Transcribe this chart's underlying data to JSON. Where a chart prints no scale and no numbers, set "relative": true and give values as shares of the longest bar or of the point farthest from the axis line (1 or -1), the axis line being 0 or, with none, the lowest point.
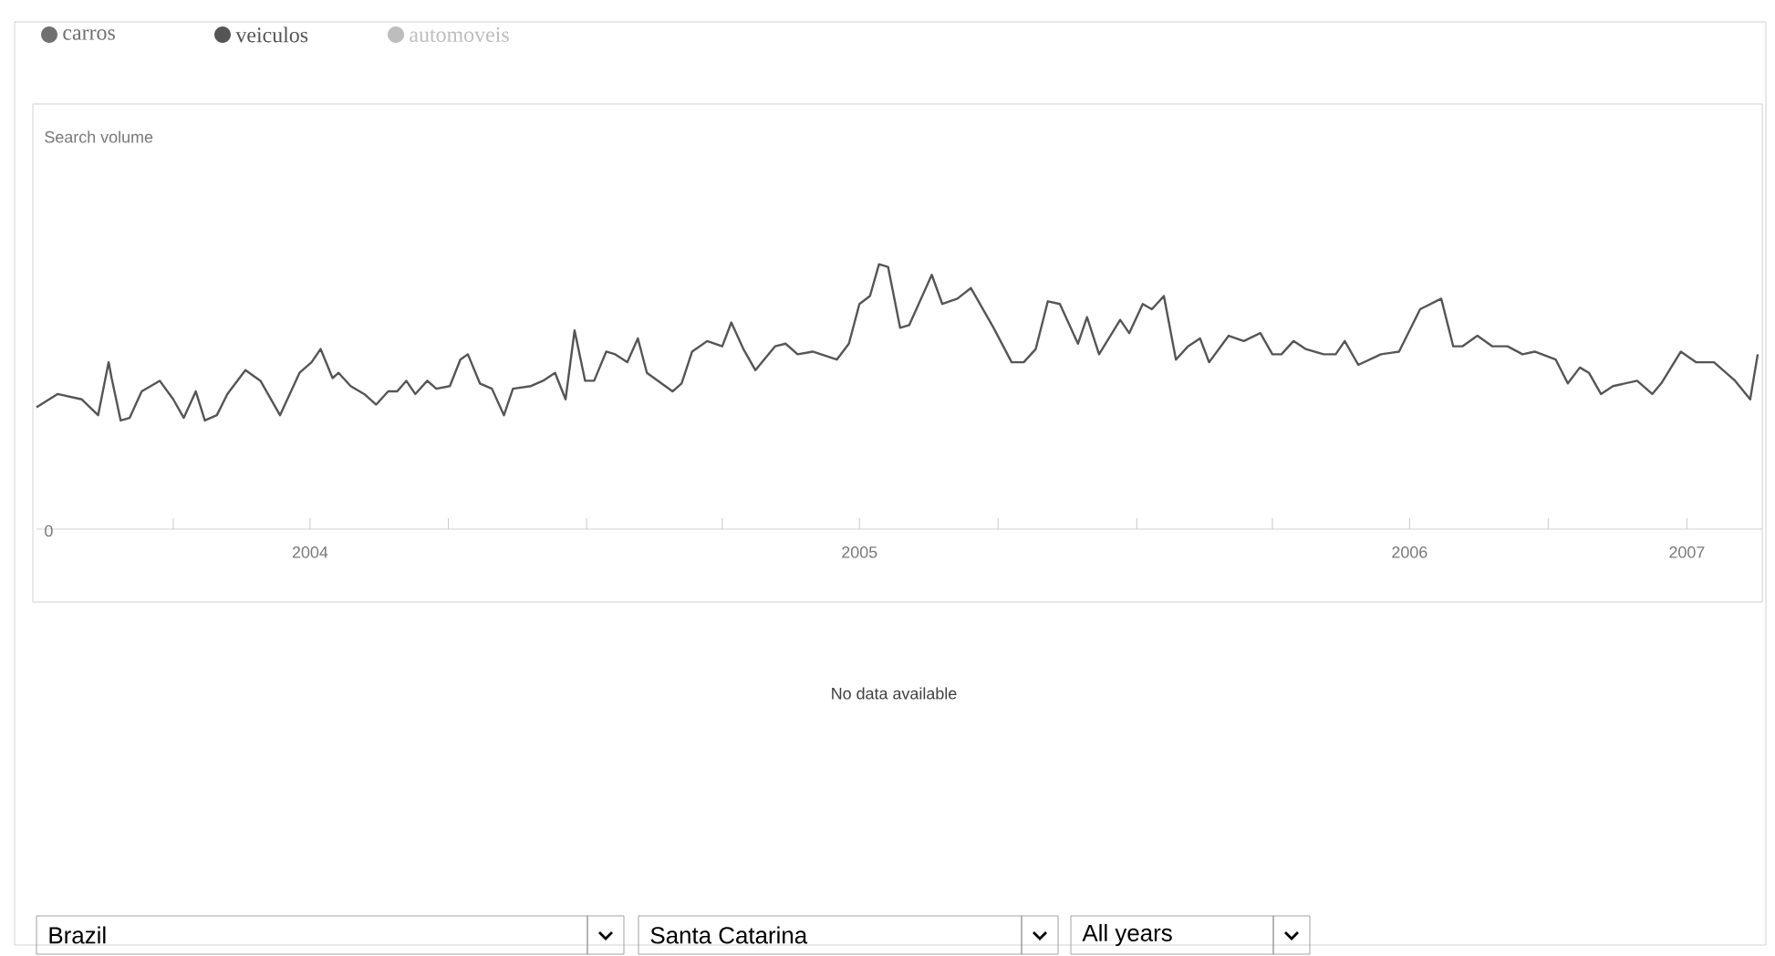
{
  "chart_data": {
    "type": "line",
    "relative": true,
    "legend": "top left",
    "xlim": [
      "2004-01-01",
      "2007-02-20"
    ],
    "xticks": [
      {
        "value": "2004-04-01",
        "label": null
      },
      {
        "value": "2004-07-01",
        "label": "2004"
      },
      {
        "value": "2004-10-01",
        "label": null
      },
      {
        "value": "2005-01-01",
        "label": null
      },
      {
        "value": "2005-04-01",
        "label": null
      },
      {
        "value": "2005-07-01",
        "label": "2005"
      },
      {
        "value": "2005-10-01",
        "label": null
      },
      {
        "value": "2006-01-01",
        "label": null
      },
      {
        "value": "2006-04-01",
        "label": null
      },
      {
        "value": "2006-07-01",
        "label": "2006"
      },
      {
        "value": "2006-10-01",
        "label": null
      },
      {
        "value": "2007-01-01",
        "label": "2007"
      }
    ],
    "annotations": [
      "Search volume",
      "0",
      "No data available",
      "Brazil",
      "Santa Catarina",
      "All years"
    ],
    "series": [
      {
        "name": "carros",
        "color": "#707070"
      },
      {
        "name": "veiculos",
        "color": "#555555",
        "x": [
          "2004-01-01",
          "2004-01-15",
          "2004-01-31",
          "2004-02-11",
          "2004-02-18",
          "2004-02-20",
          "2004-02-26",
          "2004-03-03",
          "2004-03-11",
          "2004-03-23",
          "2004-04-01",
          "2004-04-08",
          "2004-04-16",
          "2004-04-22",
          "2004-04-30",
          "2004-05-07",
          "2004-05-19",
          "2004-05-29",
          "2004-06-11",
          "2004-06-24",
          "2004-07-02",
          "2004-07-08",
          "2004-07-16",
          "2004-07-20",
          "2004-07-28",
          "2004-08-06",
          "2004-08-14",
          "2004-08-22",
          "2004-08-28",
          "2004-09-03",
          "2004-09-09",
          "2004-09-17",
          "2004-09-23",
          "2004-10-02",
          "2004-10-09",
          "2004-10-14",
          "2004-10-22",
          "2004-10-30",
          "2004-11-07",
          "2004-11-13",
          "2004-11-25",
          "2004-12-03",
          "2004-12-11",
          "2004-12-18",
          "2004-12-24",
          "2004-12-31",
          "2005-01-06",
          "2005-01-14",
          "2005-01-20",
          "2005-01-28",
          "2005-02-04",
          "2005-02-10",
          "2005-02-27",
          "2005-03-05",
          "2005-03-12",
          "2005-03-22",
          "2005-04-01",
          "2005-04-07",
          "2005-04-15",
          "2005-04-23",
          "2005-05-06",
          "2005-05-13",
          "2005-05-21",
          "2005-05-31",
          "2005-06-16",
          "2005-06-24",
          "2005-07-01",
          "2005-07-08",
          "2005-07-14",
          "2005-07-20",
          "2005-07-28",
          "2005-08-03",
          "2005-08-18",
          "2005-08-25",
          "2005-09-04",
          "2005-09-13",
          "2005-09-28",
          "2005-10-10",
          "2005-10-18",
          "2005-10-26",
          "2005-11-03",
          "2005-11-11",
          "2005-11-23",
          "2005-11-29",
          "2005-12-07",
          "2005-12-21",
          "2005-12-27",
          "2006-01-05",
          "2006-01-11",
          "2006-01-19",
          "2006-01-27",
          "2006-02-04",
          "2006-02-12",
          "2006-02-18",
          "2006-03-03",
          "2006-03-13",
          "2006-03-24",
          "2006-04-01",
          "2006-04-07",
          "2006-04-15",
          "2006-04-23",
          "2006-05-05",
          "2006-05-13",
          "2006-05-19",
          "2006-05-28",
          "2006-06-12",
          "2006-06-24",
          "2006-07-08",
          "2006-07-22",
          "2006-07-30",
          "2006-08-05",
          "2006-08-15",
          "2006-08-25",
          "2006-09-04",
          "2006-09-14",
          "2006-09-22",
          "2006-10-06",
          "2006-10-14",
          "2006-10-22",
          "2006-10-28",
          "2006-11-05",
          "2006-11-13",
          "2006-11-29",
          "2006-12-09",
          "2006-12-15",
          "2006-12-28",
          "2007-01-07",
          "2007-01-19",
          "2007-02-02",
          "2007-02-12",
          "2007-02-17"
        ],
        "values": [
          0.46,
          0.51,
          0.49,
          0.43,
          0.63,
          0.57,
          0.41,
          0.42,
          0.52,
          0.56,
          0.49,
          0.42,
          0.52,
          0.41,
          0.43,
          0.51,
          0.6,
          0.56,
          0.43,
          0.59,
          0.63,
          0.68,
          0.57,
          0.59,
          0.54,
          0.51,
          0.47,
          0.52,
          0.52,
          0.56,
          0.51,
          0.56,
          0.53,
          0.54,
          0.64,
          0.66,
          0.55,
          0.53,
          0.43,
          0.53,
          0.54,
          0.56,
          0.59,
          0.49,
          0.75,
          0.56,
          0.56,
          0.67,
          0.66,
          0.63,
          0.72,
          0.59,
          0.52,
          0.55,
          0.67,
          0.71,
          0.69,
          0.78,
          0.68,
          0.6,
          0.69,
          0.7,
          0.66,
          0.67,
          0.64,
          0.7,
          0.85,
          0.88,
          1,
          0.99,
          0.76,
          0.77,
          0.96,
          0.85,
          0.87,
          0.91,
          0.76,
          0.63,
          0.63,
          0.68,
          0.86,
          0.85,
          0.7,
          0.8,
          0.66,
          0.79,
          0.74,
          0.85,
          0.83,
          0.88,
          0.64,
          0.69,
          0.72,
          0.63,
          0.73,
          0.71,
          0.74,
          0.66,
          0.66,
          0.71,
          0.68,
          0.66,
          0.66,
          0.71,
          0.62,
          0.66,
          0.67,
          0.83,
          0.87,
          0.69,
          0.69,
          0.73,
          0.69,
          0.69,
          0.66,
          0.67,
          0.64,
          0.55,
          0.61,
          0.59,
          0.51,
          0.54,
          0.56,
          0.51,
          0.55,
          0.67,
          0.63,
          0.63,
          0.56,
          0.49,
          0.66
        ]
      },
      {
        "name": "automoveis",
        "color": "#bdbdbd"
      }
    ]
  }
}
